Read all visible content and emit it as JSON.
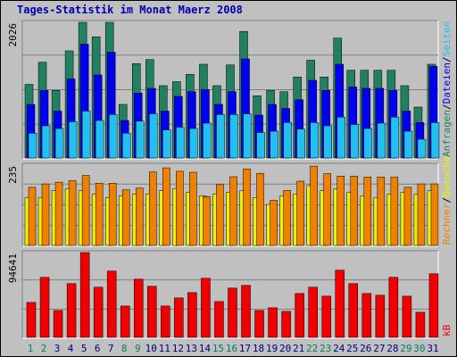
{
  "title": "Tages-Statistik im Monat Maerz 2008",
  "colors": {
    "background": "#c0c0c0",
    "grid": "#808080",
    "anfragen": "#208060",
    "dateien": "#0000f0",
    "seiten": "#20c0f0",
    "besuche": "#f0f000",
    "rechner": "#f08000",
    "kb": "#f00000",
    "day_weekday": "#000080",
    "day_weekend": "#008060"
  },
  "chart_data": [
    {
      "type": "bar",
      "name": "top-panel",
      "ymax_label": "2026",
      "ylim": [
        0,
        2026
      ],
      "right_labels": [
        {
          "text": "Anfragen",
          "color": "#208060"
        },
        {
          "text": "/",
          "color": "#000000"
        },
        {
          "text": "Dateien",
          "color": "#0000f0"
        },
        {
          "text": "/",
          "color": "#000000"
        },
        {
          "text": "Seiten",
          "color": "#20c0f0"
        }
      ],
      "categories": [
        "1",
        "2",
        "3",
        "4",
        "5",
        "6",
        "7",
        "8",
        "9",
        "10",
        "11",
        "12",
        "13",
        "14",
        "15",
        "16",
        "17",
        "18",
        "19",
        "20",
        "21",
        "22",
        "23",
        "24",
        "25",
        "26",
        "27",
        "28",
        "29",
        "30",
        "31"
      ],
      "series": [
        {
          "name": "Anfragen",
          "values": [
            1100,
            1430,
            1010,
            1600,
            2026,
            1810,
            2026,
            800,
            1410,
            1470,
            1080,
            1140,
            1250,
            1400,
            1080,
            1390,
            1890,
            930,
            1010,
            990,
            1210,
            1460,
            1210,
            1790,
            1310,
            1310,
            1310,
            1310,
            1080,
            760,
            1400
          ]
        },
        {
          "name": "Dateien",
          "values": [
            800,
            1010,
            700,
            1180,
            1700,
            1240,
            1580,
            560,
            970,
            1040,
            700,
            920,
            990,
            1020,
            800,
            990,
            1480,
            640,
            800,
            740,
            870,
            1160,
            1010,
            1400,
            1060,
            1040,
            1040,
            1010,
            700,
            530,
            1370
          ]
        },
        {
          "name": "Seiten",
          "values": [
            370,
            480,
            440,
            540,
            700,
            560,
            650,
            370,
            550,
            660,
            420,
            460,
            440,
            520,
            650,
            650,
            660,
            380,
            400,
            530,
            430,
            530,
            480,
            610,
            500,
            440,
            520,
            610,
            400,
            280,
            530
          ]
        }
      ]
    },
    {
      "type": "bar",
      "name": "middle-panel",
      "ymax_label": "235",
      "ylim": [
        0,
        235
      ],
      "right_labels": [
        {
          "text": "Rechner",
          "color": "#f08000"
        },
        {
          "text": "/",
          "color": "#000000"
        },
        {
          "text": "Besuche",
          "color": "#f0f000"
        }
      ],
      "categories": [
        "1",
        "2",
        "3",
        "4",
        "5",
        "6",
        "7",
        "8",
        "9",
        "10",
        "11",
        "12",
        "13",
        "14",
        "15",
        "16",
        "17",
        "18",
        "19",
        "20",
        "21",
        "22",
        "23",
        "24",
        "25",
        "26",
        "27",
        "28",
        "29",
        "30",
        "31"
      ],
      "series": [
        {
          "name": "Besuche",
          "values": [
            140,
            140,
            160,
            165,
            160,
            150,
            140,
            145,
            150,
            150,
            160,
            165,
            155,
            145,
            150,
            155,
            160,
            140,
            120,
            145,
            150,
            175,
            160,
            165,
            155,
            145,
            140,
            150,
            155,
            150,
            160
          ]
        },
        {
          "name": "Rechner",
          "values": [
            170,
            180,
            185,
            190,
            205,
            182,
            182,
            163,
            168,
            215,
            227,
            217,
            214,
            143,
            178,
            201,
            224,
            211,
            132,
            161,
            188,
            232,
            210,
            203,
            203,
            200,
            200,
            200,
            170,
            180,
            180
          ]
        }
      ]
    },
    {
      "type": "bar",
      "name": "bottom-panel",
      "ymax_label": "94641",
      "ylim": [
        0,
        94641
      ],
      "right_labels": [
        {
          "text": "kB",
          "color": "#f00000"
        }
      ],
      "categories": [
        "1",
        "2",
        "3",
        "4",
        "5",
        "6",
        "7",
        "8",
        "9",
        "10",
        "11",
        "12",
        "13",
        "14",
        "15",
        "16",
        "17",
        "18",
        "19",
        "20",
        "21",
        "22",
        "23",
        "24",
        "25",
        "26",
        "27",
        "28",
        "29",
        "30",
        "31"
      ],
      "series": [
        {
          "name": "kB",
          "values": [
            39000,
            67000,
            30000,
            60000,
            94641,
            56000,
            74000,
            35000,
            65000,
            57000,
            35000,
            44000,
            50000,
            66000,
            40000,
            55000,
            58000,
            30000,
            33000,
            29000,
            49000,
            56000,
            46000,
            75000,
            60000,
            49000,
            47000,
            67000,
            46000,
            28000,
            71000
          ]
        }
      ]
    }
  ],
  "day_labels": [
    {
      "text": "1",
      "weekend": true
    },
    {
      "text": "2",
      "weekend": true
    },
    {
      "text": "3",
      "weekend": false
    },
    {
      "text": "4",
      "weekend": false
    },
    {
      "text": "5",
      "weekend": false
    },
    {
      "text": "6",
      "weekend": false
    },
    {
      "text": "7",
      "weekend": false
    },
    {
      "text": "8",
      "weekend": true
    },
    {
      "text": "9",
      "weekend": true
    },
    {
      "text": "10",
      "weekend": false
    },
    {
      "text": "11",
      "weekend": false
    },
    {
      "text": "12",
      "weekend": false
    },
    {
      "text": "13",
      "weekend": false
    },
    {
      "text": "14",
      "weekend": false
    },
    {
      "text": "15",
      "weekend": true
    },
    {
      "text": "16",
      "weekend": true
    },
    {
      "text": "17",
      "weekend": false
    },
    {
      "text": "18",
      "weekend": false
    },
    {
      "text": "19",
      "weekend": false
    },
    {
      "text": "20",
      "weekend": false
    },
    {
      "text": "21",
      "weekend": false
    },
    {
      "text": "22",
      "weekend": true
    },
    {
      "text": "23",
      "weekend": true
    },
    {
      "text": "24",
      "weekend": false
    },
    {
      "text": "25",
      "weekend": false
    },
    {
      "text": "26",
      "weekend": false
    },
    {
      "text": "27",
      "weekend": false
    },
    {
      "text": "28",
      "weekend": false
    },
    {
      "text": "29",
      "weekend": true
    },
    {
      "text": "30",
      "weekend": true
    },
    {
      "text": "31",
      "weekend": false
    }
  ]
}
